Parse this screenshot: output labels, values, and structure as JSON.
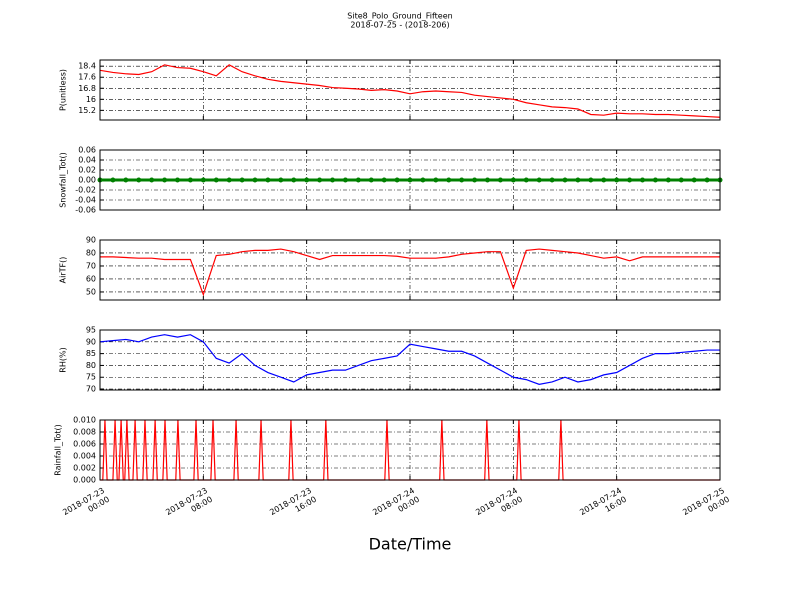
{
  "title": "Site8_Polo_Ground_Fifteen",
  "subtitle": "2018-07-25 - (2018-206)",
  "xlabel": "Date/Time",
  "xlim": [
    "2018-07-23 00:00",
    "2018-07-25 00:00"
  ],
  "xticks": [
    {
      "value": "2018-07-23 00:00",
      "label": "2018-07-23\n00:00"
    },
    {
      "value": "2018-07-23 08:00",
      "label": "2018-07-23\n08:00"
    },
    {
      "value": "2018-07-23 16:00",
      "label": "2018-07-23\n16:00"
    },
    {
      "value": "2018-07-24 00:00",
      "label": "2018-07-24\n00:00"
    },
    {
      "value": "2018-07-24 08:00",
      "label": "2018-07-24\n08:00"
    },
    {
      "value": "2018-07-24 16:00",
      "label": "2018-07-24\n16:00"
    },
    {
      "value": "2018-07-25 00:00",
      "label": "2018-07-25\n00:00"
    }
  ],
  "x": [
    "2018-07-23 00:00",
    "2018-07-23 01:00",
    "2018-07-23 02:00",
    "2018-07-23 03:00",
    "2018-07-23 04:00",
    "2018-07-23 05:00",
    "2018-07-23 06:00",
    "2018-07-23 07:00",
    "2018-07-23 08:00",
    "2018-07-23 09:00",
    "2018-07-23 10:00",
    "2018-07-23 11:00",
    "2018-07-23 12:00",
    "2018-07-23 13:00",
    "2018-07-23 14:00",
    "2018-07-23 15:00",
    "2018-07-23 16:00",
    "2018-07-23 17:00",
    "2018-07-23 18:00",
    "2018-07-23 19:00",
    "2018-07-23 20:00",
    "2018-07-23 21:00",
    "2018-07-23 22:00",
    "2018-07-23 23:00",
    "2018-07-24 00:00",
    "2018-07-24 01:00",
    "2018-07-24 02:00",
    "2018-07-24 03:00",
    "2018-07-24 04:00",
    "2018-07-24 05:00",
    "2018-07-24 06:00",
    "2018-07-24 07:00",
    "2018-07-24 08:00",
    "2018-07-24 09:00",
    "2018-07-24 10:00",
    "2018-07-24 11:00",
    "2018-07-24 12:00",
    "2018-07-24 13:00",
    "2018-07-24 14:00",
    "2018-07-24 15:00",
    "2018-07-24 16:00",
    "2018-07-24 17:00",
    "2018-07-24 18:00",
    "2018-07-24 19:00",
    "2018-07-24 20:00",
    "2018-07-24 21:00",
    "2018-07-24 22:00",
    "2018-07-24 23:00",
    "2018-07-25 00:00"
  ],
  "chart_data": [
    {
      "type": "line",
      "ylabel": "P(unitless)",
      "color": "#ff0000",
      "grid": true,
      "ylim": [
        14.5,
        18.85
      ],
      "yticks": [
        15.2,
        16.0,
        16.8,
        17.6,
        18.4
      ],
      "values": [
        18.1,
        17.95,
        17.85,
        17.8,
        18.0,
        18.5,
        18.3,
        18.25,
        18.0,
        17.7,
        18.5,
        18.0,
        17.7,
        17.45,
        17.3,
        17.2,
        17.1,
        17.0,
        16.85,
        16.8,
        16.75,
        16.65,
        16.7,
        16.6,
        16.4,
        16.55,
        16.6,
        16.55,
        16.5,
        16.3,
        16.2,
        16.1,
        16.0,
        15.75,
        15.6,
        15.45,
        15.4,
        15.3,
        14.9,
        14.85,
        15.0,
        14.95,
        14.95,
        14.9,
        14.9,
        14.85,
        14.8,
        14.75,
        14.7
      ]
    },
    {
      "type": "line",
      "ylabel": "Snowfall_Tot()",
      "color": "#008000",
      "markers": true,
      "grid": true,
      "ylim": [
        -0.06,
        0.06
      ],
      "yticks": [
        -0.06,
        -0.04,
        -0.02,
        {
          "value": 0,
          "label": "0.00"
        },
        0.02,
        0.04,
        0.06
      ],
      "values": [
        0,
        0,
        0,
        0,
        0,
        0,
        0,
        0,
        0,
        0,
        0,
        0,
        0,
        0,
        0,
        0,
        0,
        0,
        0,
        0,
        0,
        0,
        0,
        0,
        0,
        0,
        0,
        0,
        0,
        0,
        0,
        0,
        0,
        0,
        0,
        0,
        0,
        0,
        0,
        0,
        0,
        0,
        0,
        0,
        0,
        0,
        0,
        0,
        0
      ]
    },
    {
      "type": "line",
      "ylabel": "AirTF()",
      "color": "#ff0000",
      "grid": true,
      "ylim": [
        43.8,
        90
      ],
      "yticks": [
        50,
        60,
        70,
        80,
        90
      ],
      "values": [
        77,
        77,
        76.5,
        76,
        76,
        75,
        75,
        75,
        48,
        78,
        79,
        81,
        82,
        82,
        83,
        81,
        78,
        75,
        78,
        78,
        78,
        78,
        78,
        77.5,
        76,
        76,
        76,
        77,
        79,
        80,
        81,
        81,
        53,
        82,
        83,
        82,
        81,
        80,
        78,
        76,
        77,
        74,
        77,
        77,
        77,
        77,
        77,
        77,
        77
      ]
    },
    {
      "type": "line",
      "ylabel": "RH(%)",
      "color": "#0000ff",
      "grid": true,
      "ylim": [
        69.6,
        95
      ],
      "yticks": [
        70,
        75,
        80,
        85,
        90,
        95
      ],
      "values": [
        90,
        90.5,
        91,
        90,
        92,
        93,
        92,
        93,
        90,
        83,
        81,
        85,
        80,
        77,
        75,
        73,
        76,
        77,
        78,
        78,
        80,
        82,
        83,
        84,
        89,
        88,
        87,
        86,
        86,
        84,
        81,
        78,
        75,
        74,
        72,
        73,
        75,
        73,
        74,
        76,
        77,
        80,
        83,
        85,
        85,
        85.5,
        86,
        86.5,
        86.5
      ]
    },
    {
      "type": "line",
      "ylabel": "Rainfall_Tot()",
      "color": "#ff0000",
      "grid": true,
      "ylim": [
        0,
        0.01
      ],
      "yticks": [
        {
          "value": 0,
          "label": "0.000"
        },
        {
          "value": 0.002,
          "label": "0.002"
        },
        {
          "value": 0.004,
          "label": "0.004"
        },
        {
          "value": 0.006,
          "label": "0.006"
        },
        {
          "value": 0.008,
          "label": "0.008"
        },
        {
          "value": 0.01,
          "label": "0.010"
        }
      ],
      "x": [
        "2018-07-23 00:00",
        "2018-07-23 00:13",
        "2018-07-23 00:23",
        "2018-07-23 00:33",
        "2018-07-23 01:00",
        "2018-07-23 01:10",
        "2018-07-23 01:20",
        "2018-07-23 01:28",
        "2018-07-23 01:38",
        "2018-07-23 01:48",
        "2018-07-23 01:55",
        "2018-07-23 02:05",
        "2018-07-23 02:15",
        "2018-07-23 02:33",
        "2018-07-23 02:43",
        "2018-07-23 02:53",
        "2018-07-23 03:19",
        "2018-07-23 03:29",
        "2018-07-23 03:39",
        "2018-07-23 04:06",
        "2018-07-23 04:16",
        "2018-07-23 04:26",
        "2018-07-23 04:52",
        "2018-07-23 05:02",
        "2018-07-23 05:12",
        "2018-07-23 05:52",
        "2018-07-23 06:02",
        "2018-07-23 06:12",
        "2018-07-23 07:16",
        "2018-07-23 07:26",
        "2018-07-23 07:36",
        "2018-07-23 08:35",
        "2018-07-23 08:45",
        "2018-07-23 08:55",
        "2018-07-23 10:22",
        "2018-07-23 10:32",
        "2018-07-23 10:42",
        "2018-07-23 12:18",
        "2018-07-23 12:28",
        "2018-07-23 12:38",
        "2018-07-23 14:37",
        "2018-07-23 14:47",
        "2018-07-23 14:57",
        "2018-07-23 17:19",
        "2018-07-23 17:29",
        "2018-07-23 17:39",
        "2018-07-23 22:03",
        "2018-07-23 22:13",
        "2018-07-23 22:23",
        "2018-07-24 02:18",
        "2018-07-24 02:28",
        "2018-07-24 02:38",
        "2018-07-24 05:47",
        "2018-07-24 05:57",
        "2018-07-24 06:07",
        "2018-07-24 08:16",
        "2018-07-24 08:26",
        "2018-07-24 08:36",
        "2018-07-24 11:31",
        "2018-07-24 11:41",
        "2018-07-24 11:51",
        "2018-07-25 00:00"
      ],
      "values": [
        0,
        0,
        0.01,
        0,
        0,
        0.01,
        0,
        0,
        0.01,
        0,
        0,
        0.01,
        0,
        0,
        0.01,
        0,
        0,
        0.01,
        0,
        0,
        0.01,
        0,
        0,
        0.01,
        0,
        0,
        0.01,
        0,
        0,
        0.01,
        0,
        0,
        0.01,
        0,
        0,
        0.01,
        0,
        0,
        0.01,
        0,
        0,
        0.01,
        0,
        0,
        0.01,
        0,
        0,
        0.01,
        0,
        0,
        0.01,
        0,
        0,
        0.01,
        0,
        0,
        0.01,
        0,
        0,
        0.01,
        0,
        0
      ]
    }
  ]
}
